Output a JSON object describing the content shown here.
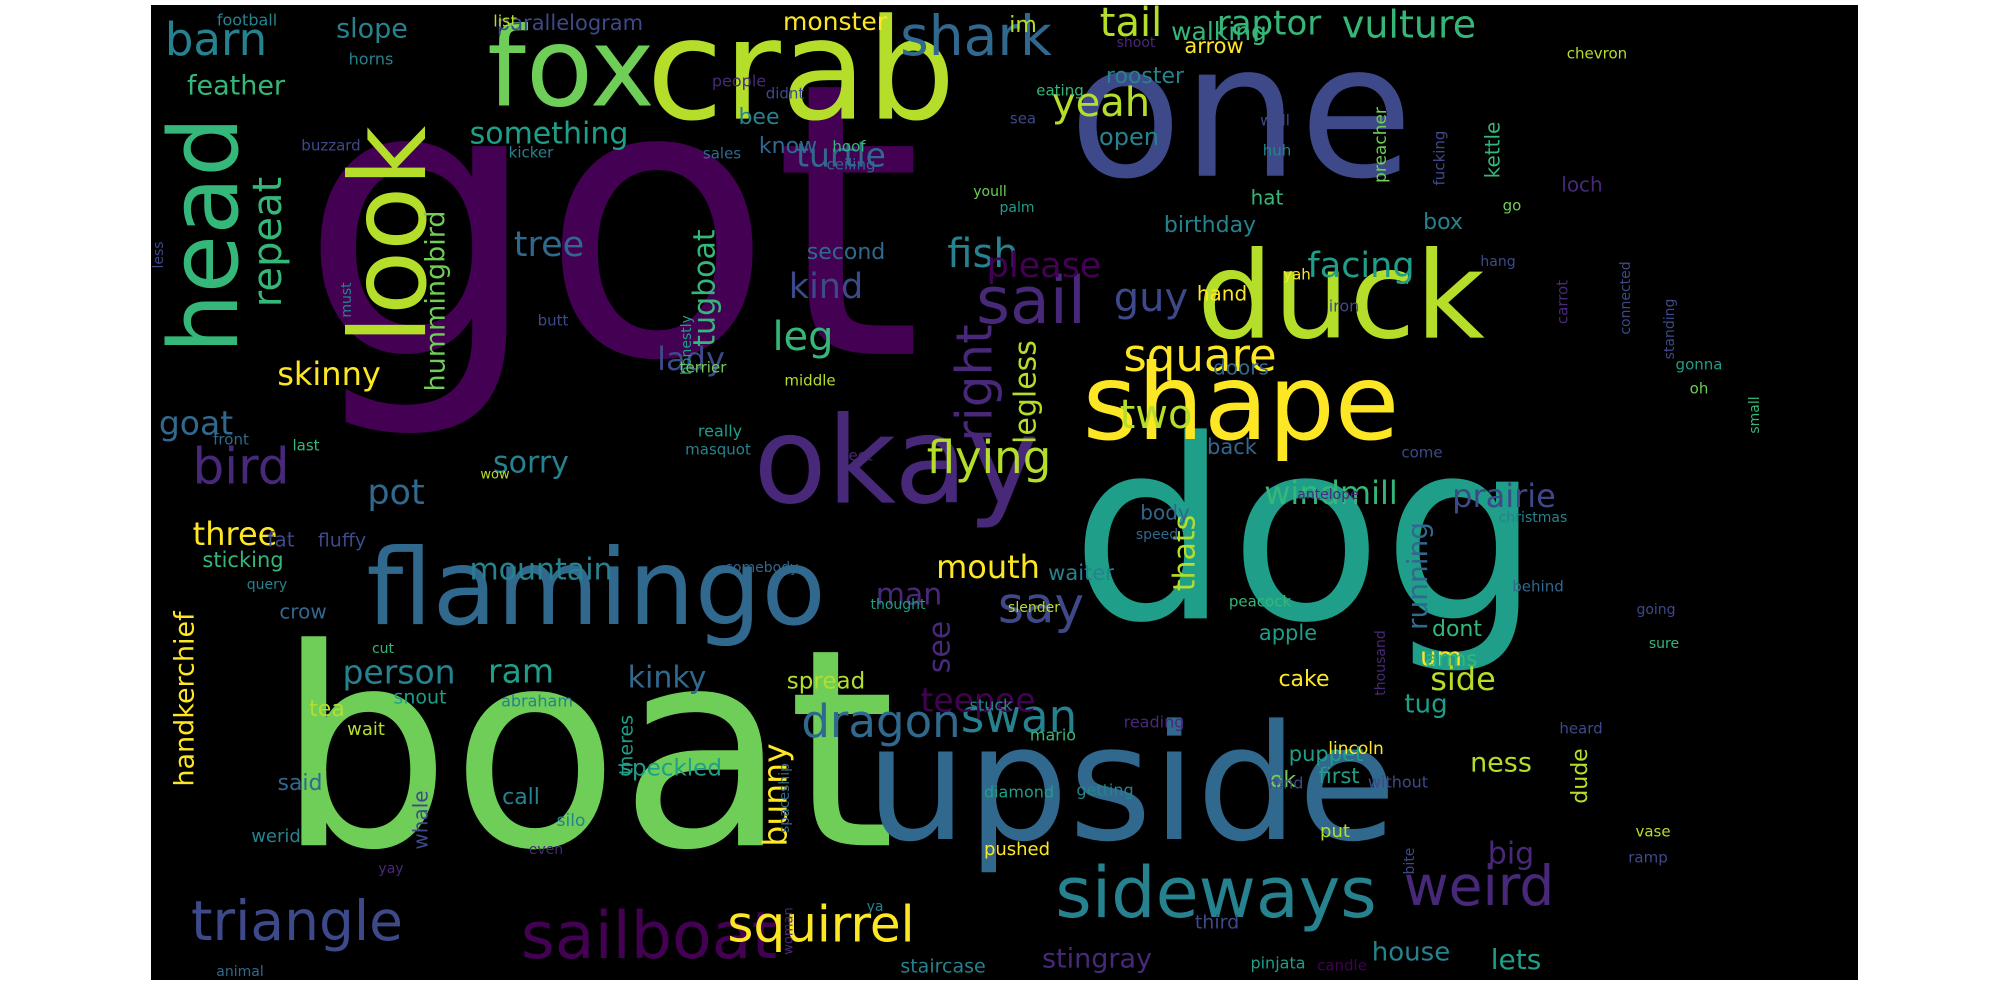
{
  "colors": {
    "background": "#000000",
    "palette": [
      "#440154",
      "#482878",
      "#3e4989",
      "#31688e",
      "#26828e",
      "#1f9e89",
      "#35b779",
      "#6ece58",
      "#b5de2b",
      "#fde725"
    ]
  },
  "words": [
    {
      "text": "got",
      "color": "#440154"
    },
    {
      "text": "one",
      "color": "#3e4989"
    },
    {
      "text": "dog",
      "color": "#1f9e89"
    },
    {
      "text": "boat",
      "color": "#6ece58"
    },
    {
      "text": "upside",
      "color": "#31688e"
    },
    {
      "text": "crab",
      "color": "#b5de2b"
    },
    {
      "text": "fox",
      "color": "#6ece58"
    },
    {
      "text": "look",
      "color": "#b5de2b"
    },
    {
      "text": "duck",
      "color": "#b5de2b"
    },
    {
      "text": "okay",
      "color": "#482878"
    },
    {
      "text": "flamingo",
      "color": "#31688e"
    },
    {
      "text": "shape",
      "color": "#fde725"
    },
    {
      "text": "head",
      "color": "#35b779"
    },
    {
      "text": "sideways",
      "color": "#26828e"
    },
    {
      "text": "sailboat",
      "color": "#440154"
    },
    {
      "text": "triangle",
      "color": "#3e4989"
    },
    {
      "text": "weird",
      "color": "#482878"
    },
    {
      "text": "squirrel",
      "color": "#fde725"
    },
    {
      "text": "shark",
      "color": "#31688e"
    },
    {
      "text": "sail",
      "color": "#482878"
    },
    {
      "text": "square",
      "color": "#fde725"
    },
    {
      "text": "dragon",
      "color": "#31688e"
    },
    {
      "text": "swan",
      "color": "#26828e"
    },
    {
      "text": "flying",
      "color": "#b5de2b"
    },
    {
      "text": "say",
      "color": "#3e4989"
    },
    {
      "text": "bird",
      "color": "#482878"
    },
    {
      "text": "barn",
      "color": "#26828e"
    },
    {
      "text": "tail",
      "color": "#b5de2b"
    },
    {
      "text": "vulture",
      "color": "#35b779"
    },
    {
      "text": "raptor",
      "color": "#35b779"
    },
    {
      "text": "repeat",
      "color": "#35b779"
    },
    {
      "text": "right",
      "color": "#482878"
    },
    {
      "text": "yeah",
      "color": "#b5de2b"
    },
    {
      "text": "guy",
      "color": "#3e4989"
    },
    {
      "text": "two",
      "color": "#b5de2b"
    },
    {
      "text": "tree",
      "color": "#31688e"
    },
    {
      "text": "fish",
      "color": "#26828e"
    },
    {
      "text": "please",
      "color": "#440154"
    },
    {
      "text": "facing",
      "color": "#1f9e89"
    },
    {
      "text": "leg",
      "color": "#35b779"
    },
    {
      "text": "kind",
      "color": "#3e4989"
    },
    {
      "text": "something",
      "color": "#1f9e89"
    },
    {
      "text": "turtle",
      "color": "#31688e"
    },
    {
      "text": "tugboat",
      "color": "#35b779"
    },
    {
      "text": "hummingbird",
      "color": "#6ece58"
    },
    {
      "text": "legless",
      "color": "#b5de2b"
    },
    {
      "text": "skinny",
      "color": "#fde725"
    },
    {
      "text": "lady",
      "color": "#3e4989"
    },
    {
      "text": "goat",
      "color": "#31688e"
    },
    {
      "text": "pot",
      "color": "#31688e"
    },
    {
      "text": "three",
      "color": "#fde725"
    },
    {
      "text": "sorry",
      "color": "#26828e"
    },
    {
      "text": "mountain",
      "color": "#26828e"
    },
    {
      "text": "mouth",
      "color": "#fde725"
    },
    {
      "text": "man",
      "color": "#482878"
    },
    {
      "text": "see",
      "color": "#482878"
    },
    {
      "text": "thats",
      "color": "#b5de2b"
    },
    {
      "text": "windmill",
      "color": "#35b779"
    },
    {
      "text": "prairie",
      "color": "#3e4989"
    },
    {
      "text": "running",
      "color": "#31688e"
    },
    {
      "text": "person",
      "color": "#26828e"
    },
    {
      "text": "ram",
      "color": "#1f9e89"
    },
    {
      "text": "kinky",
      "color": "#31688e"
    },
    {
      "text": "handkerchief",
      "color": "#fde725"
    },
    {
      "text": "bunny",
      "color": "#fde725"
    },
    {
      "text": "teepee",
      "color": "#440154"
    },
    {
      "text": "side",
      "color": "#b5de2b"
    },
    {
      "text": "um",
      "color": "#fde725"
    },
    {
      "text": "tug",
      "color": "#1f9e89"
    },
    {
      "text": "big",
      "color": "#482878"
    },
    {
      "text": "ness",
      "color": "#b5de2b"
    },
    {
      "text": "lets",
      "color": "#1f9e89"
    },
    {
      "text": "house",
      "color": "#26828e"
    },
    {
      "text": "stingray",
      "color": "#482878"
    },
    {
      "text": "walking",
      "color": "#35b779"
    },
    {
      "text": "slope",
      "color": "#26828e"
    },
    {
      "text": "feather",
      "color": "#35b779"
    },
    {
      "text": "monster",
      "color": "#fde725"
    },
    {
      "text": "parallelogram",
      "color": "#3e4989"
    },
    {
      "text": "im",
      "color": "#b5de2b"
    },
    {
      "text": "rooster",
      "color": "#26828e"
    },
    {
      "text": "arrow",
      "color": "#fde725"
    },
    {
      "text": "open",
      "color": "#26828e"
    },
    {
      "text": "know",
      "color": "#31688e"
    },
    {
      "text": "bee",
      "color": "#26828e"
    },
    {
      "text": "second",
      "color": "#31688e"
    },
    {
      "text": "birthday",
      "color": "#26828e"
    },
    {
      "text": "hat",
      "color": "#35b779"
    },
    {
      "text": "box",
      "color": "#26828e"
    },
    {
      "text": "hand",
      "color": "#fde725"
    },
    {
      "text": "doors",
      "color": "#31688e"
    },
    {
      "text": "back",
      "color": "#31688e"
    },
    {
      "text": "body",
      "color": "#31688e"
    },
    {
      "text": "waiter",
      "color": "#26828e"
    },
    {
      "text": "apple",
      "color": "#1f9e89"
    },
    {
      "text": "cake",
      "color": "#fde725"
    },
    {
      "text": "dont",
      "color": "#35b779"
    },
    {
      "text": "arms",
      "color": "#35b779"
    },
    {
      "text": "spread",
      "color": "#b5de2b"
    },
    {
      "text": "speckled",
      "color": "#1f9e89"
    },
    {
      "text": "call",
      "color": "#26828e"
    },
    {
      "text": "said",
      "color": "#31688e"
    },
    {
      "text": "tea",
      "color": "#b5de2b"
    },
    {
      "text": "fat",
      "color": "#3e4989"
    },
    {
      "text": "fluffy",
      "color": "#3e4989"
    },
    {
      "text": "sticking",
      "color": "#35b779"
    },
    {
      "text": "crow",
      "color": "#31688e"
    },
    {
      "text": "snout",
      "color": "#1f9e89"
    },
    {
      "text": "puppet",
      "color": "#1f9e89"
    },
    {
      "text": "first",
      "color": "#1f9e89"
    },
    {
      "text": "ok",
      "color": "#6ece58"
    },
    {
      "text": "dude",
      "color": "#b5de2b"
    },
    {
      "text": "whale",
      "color": "#3e4989"
    },
    {
      "text": "theres",
      "color": "#1f9e89"
    },
    {
      "text": "wait",
      "color": "#b5de2b"
    },
    {
      "text": "abraham",
      "color": "#26828e"
    },
    {
      "text": "werid",
      "color": "#26828e"
    },
    {
      "text": "silo",
      "color": "#26828e"
    },
    {
      "text": "lincoln",
      "color": "#fde725"
    },
    {
      "text": "hind",
      "color": "#3e4989"
    },
    {
      "text": "without",
      "color": "#3e4989"
    },
    {
      "text": "getting",
      "color": "#26828e"
    },
    {
      "text": "diamond",
      "color": "#1f9e89"
    },
    {
      "text": "mario",
      "color": "#35b779"
    },
    {
      "text": "stuck",
      "color": "#26828e"
    },
    {
      "text": "reading",
      "color": "#482878"
    },
    {
      "text": "heard",
      "color": "#3e4989"
    },
    {
      "text": "pushed",
      "color": "#fde725"
    },
    {
      "text": "put",
      "color": "#b5de2b"
    },
    {
      "text": "third",
      "color": "#3e4989"
    },
    {
      "text": "staircase",
      "color": "#26828e"
    },
    {
      "text": "pinjata",
      "color": "#1f9e89"
    },
    {
      "text": "candle",
      "color": "#440154"
    },
    {
      "text": "vase",
      "color": "#b5de2b"
    },
    {
      "text": "ramp",
      "color": "#3e4989"
    },
    {
      "text": "football",
      "color": "#26828e"
    },
    {
      "text": "horns",
      "color": "#26828e"
    },
    {
      "text": "list",
      "color": "#b5de2b"
    },
    {
      "text": "people",
      "color": "#482878"
    },
    {
      "text": "didnt",
      "color": "#3e4989"
    },
    {
      "text": "eating",
      "color": "#35b779"
    },
    {
      "text": "sea",
      "color": "#3e4989"
    },
    {
      "text": "shoot",
      "color": "#482878"
    },
    {
      "text": "chevron",
      "color": "#b5de2b"
    },
    {
      "text": "hoof",
      "color": "#35b779"
    },
    {
      "text": "ceiling",
      "color": "#31688e"
    },
    {
      "text": "sales",
      "color": "#31688e"
    },
    {
      "text": "kicker",
      "color": "#26828e"
    },
    {
      "text": "buzzard",
      "color": "#3e4989"
    },
    {
      "text": "well",
      "color": "#3e4989"
    },
    {
      "text": "huh",
      "color": "#26828e"
    },
    {
      "text": "preacher",
      "color": "#6ece58"
    },
    {
      "text": "fucking",
      "color": "#3e4989"
    },
    {
      "text": "kettle",
      "color": "#35b779"
    },
    {
      "text": "loch",
      "color": "#482878"
    },
    {
      "text": "go",
      "color": "#6ece58"
    },
    {
      "text": "palm",
      "color": "#1f9e89"
    },
    {
      "text": "youll",
      "color": "#6ece58"
    },
    {
      "text": "honestly",
      "color": "#1f9e89"
    },
    {
      "text": "must",
      "color": "#26828e"
    },
    {
      "text": "less",
      "color": "#3e4989"
    },
    {
      "text": "butt",
      "color": "#3e4989"
    },
    {
      "text": "terrier",
      "color": "#6ece58"
    },
    {
      "text": "yah",
      "color": "#fde725"
    },
    {
      "text": "hang",
      "color": "#3e4989"
    },
    {
      "text": "iron",
      "color": "#3e4989"
    },
    {
      "text": "carrot",
      "color": "#482878"
    },
    {
      "text": "connected",
      "color": "#3e4989"
    },
    {
      "text": "standing",
      "color": "#3e4989"
    },
    {
      "text": "small",
      "color": "#35b779"
    },
    {
      "text": "gonna",
      "color": "#1f9e89"
    },
    {
      "text": "oh",
      "color": "#6ece58"
    },
    {
      "text": "middle",
      "color": "#b5de2b"
    },
    {
      "text": "really",
      "color": "#1f9e89"
    },
    {
      "text": "masquot",
      "color": "#26828e"
    },
    {
      "text": "front",
      "color": "#31688e"
    },
    {
      "text": "last",
      "color": "#35b779"
    },
    {
      "text": "wow",
      "color": "#b5de2b"
    },
    {
      "text": "feet",
      "color": "#482878"
    },
    {
      "text": "come",
      "color": "#3e4989"
    },
    {
      "text": "antelope",
      "color": "#482878"
    },
    {
      "text": "christmas",
      "color": "#26828e"
    },
    {
      "text": "speed",
      "color": "#31688e"
    },
    {
      "text": "somebody",
      "color": "#31688e"
    },
    {
      "text": "query",
      "color": "#26828e"
    },
    {
      "text": "thought",
      "color": "#1f9e89"
    },
    {
      "text": "slender",
      "color": "#b5de2b"
    },
    {
      "text": "peacock",
      "color": "#35b779"
    },
    {
      "text": "behind",
      "color": "#31688e"
    },
    {
      "text": "going",
      "color": "#3e4989"
    },
    {
      "text": "thousand",
      "color": "#482878"
    },
    {
      "text": "sure",
      "color": "#35b779"
    },
    {
      "text": "cut",
      "color": "#35b779"
    },
    {
      "text": "spaceship",
      "color": "#31688e"
    },
    {
      "text": "yay",
      "color": "#482878"
    },
    {
      "text": "even",
      "color": "#482878"
    },
    {
      "text": "bite",
      "color": "#3e4989"
    },
    {
      "text": "ya",
      "color": "#26828e"
    },
    {
      "text": "woman",
      "color": "#482878"
    },
    {
      "text": "animal",
      "color": "#31688e"
    }
  ]
}
